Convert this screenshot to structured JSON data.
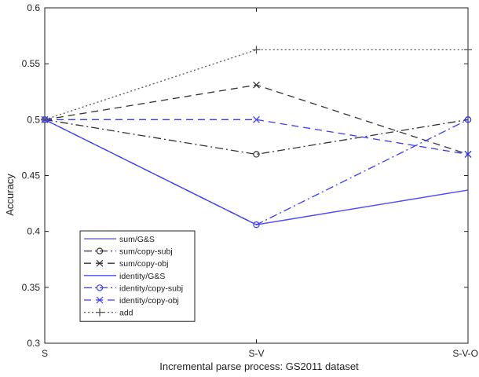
{
  "chart_data": {
    "type": "line",
    "xlabel": "Incremental parse process: GS2011 dataset",
    "ylabel": "Accuracy",
    "categories": [
      "S",
      "S-V",
      "S-V-O"
    ],
    "ylim": [
      0.3,
      0.6
    ],
    "yticks": [
      0.3,
      0.35,
      0.4,
      0.45,
      0.5,
      0.55,
      0.6
    ],
    "ytick_labels": [
      "0.3",
      "0.35",
      "0.4",
      "0.45",
      "0.5",
      "0.55",
      "0.6"
    ],
    "grid": false,
    "legend_position": "lower-left",
    "series": [
      {
        "name": "sum/G&S",
        "values": [
          0.5,
          0.406,
          0.437
        ],
        "color": "#4d4dff",
        "dash": "solid",
        "marker": "none"
      },
      {
        "name": "sum/copy-subj",
        "values": [
          0.5,
          0.469,
          0.5
        ],
        "color": "#333333",
        "dash": "dashdot",
        "marker": "circle"
      },
      {
        "name": "sum/copy-obj",
        "values": [
          0.5,
          0.531,
          0.469
        ],
        "color": "#333333",
        "dash": "dashed",
        "marker": "x"
      },
      {
        "name": "identity/G&S",
        "values": [
          0.5,
          0.406,
          0.437
        ],
        "color": "#4d4dff",
        "dash": "solid",
        "marker": "none"
      },
      {
        "name": "identity/copy-subj",
        "values": [
          0.5,
          0.406,
          0.5
        ],
        "color": "#3a3aff",
        "dash": "dashdot",
        "marker": "circle"
      },
      {
        "name": "identity/copy-obj",
        "values": [
          0.5,
          0.5,
          0.469
        ],
        "color": "#3a3aff",
        "dash": "dashed",
        "marker": "x"
      },
      {
        "name": "add",
        "values": [
          0.5,
          0.5625,
          0.5625
        ],
        "color": "#555555",
        "dash": "dotted",
        "marker": "plus"
      }
    ]
  }
}
